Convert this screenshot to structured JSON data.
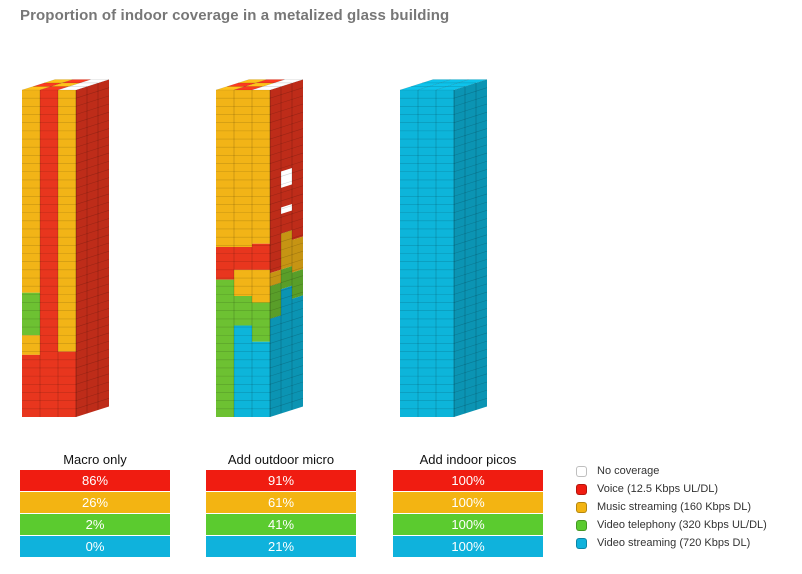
{
  "title": "Proportion of indoor coverage in a metalized glass building",
  "colors": {
    "no_coverage": "#ffffff",
    "voice": "#e8361e",
    "music": "#f2b417",
    "video_telephony": "#6dc132",
    "video_streaming": "#0db5da"
  },
  "legend": [
    {
      "label": "No coverage",
      "color": "#ffffff"
    },
    {
      "label": "Voice (12.5 Kbps UL/DL)",
      "color": "#f01c11"
    },
    {
      "label": "Music streaming (160 Kbps DL)",
      "color": "#f3b412"
    },
    {
      "label": "Video telephony (320 Kbps UL/DL)",
      "color": "#5bcb2f"
    },
    {
      "label": "Video streaming (720 Kbps DL)",
      "color": "#0fb2dc"
    }
  ],
  "chart_data": {
    "type": "table",
    "title": "Proportion of indoor coverage in a metalized glass building",
    "categories": [
      "Macro only",
      "Add outdoor micro",
      "Add indoor picos"
    ],
    "series": [
      {
        "name": "Voice (12.5 Kbps UL/DL)",
        "values": [
          "86%",
          "91%",
          "100%"
        ],
        "color": "#f01c11"
      },
      {
        "name": "Music streaming (160 Kbps DL)",
        "values": [
          "26%",
          "61%",
          "100%"
        ],
        "color": "#f3b412"
      },
      {
        "name": "Video telephony (320 Kbps UL/DL)",
        "values": [
          "2%",
          "41%",
          "100%"
        ],
        "color": "#5bcb2f"
      },
      {
        "name": "Video streaming (720 Kbps DL)",
        "values": [
          "0%",
          "21%",
          "100%"
        ],
        "color": "#0fb2dc"
      }
    ]
  }
}
